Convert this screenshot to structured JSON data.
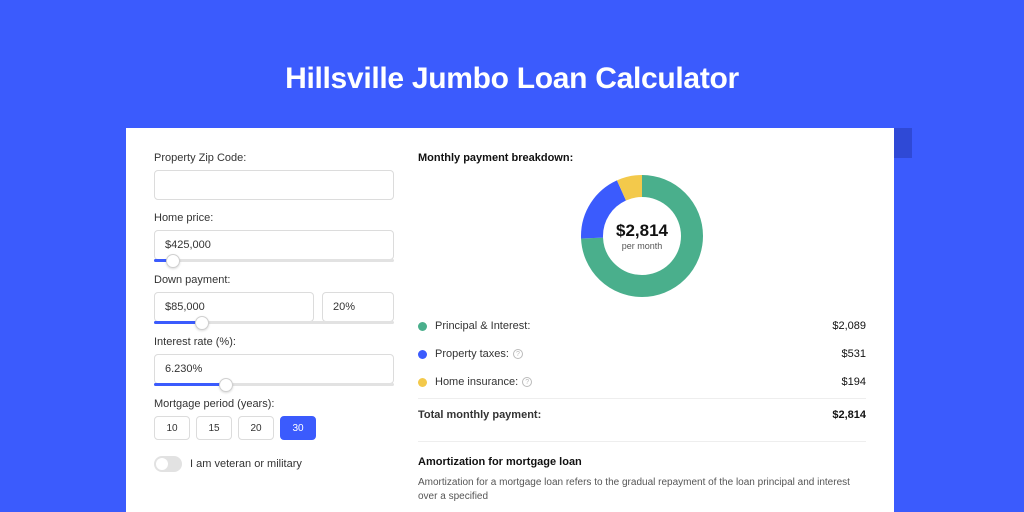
{
  "title": "Hillsville Jumbo Loan Calculator",
  "colors": {
    "page_bg": "#3b5bfd",
    "shadow": "#2f49d6",
    "card_bg": "#ffffff",
    "accent": "#3b5bfd",
    "input_border": "#dcdcdc",
    "text": "#333333"
  },
  "form": {
    "zip": {
      "label": "Property Zip Code:",
      "value": ""
    },
    "price": {
      "label": "Home price:",
      "value": "$425,000",
      "slider_percent": 8
    },
    "down": {
      "label": "Down payment:",
      "amount": "$85,000",
      "percent": "20%",
      "slider_percent": 20
    },
    "rate": {
      "label": "Interest rate (%):",
      "value": "6.230%",
      "slider_percent": 30
    },
    "period": {
      "label": "Mortgage period (years):",
      "options": [
        "10",
        "15",
        "20",
        "30"
      ],
      "active": "30"
    },
    "veteran": {
      "label": "I am veteran or military",
      "on": false
    }
  },
  "breakdown": {
    "title": "Monthly payment breakdown:",
    "total_amount": "$2,814",
    "total_sub": "per month",
    "donut": {
      "type": "donut",
      "radius": 50,
      "stroke_width": 22,
      "circumference": 314.16,
      "segments": [
        {
          "name": "principal_interest",
          "color": "#4aaf8c",
          "fraction": 0.742
        },
        {
          "name": "property_taxes",
          "color": "#3b5bfd",
          "fraction": 0.189
        },
        {
          "name": "home_insurance",
          "color": "#f3c94b",
          "fraction": 0.069
        }
      ]
    },
    "rows": [
      {
        "color": "#4aaf8c",
        "label": "Principal & Interest:",
        "info": false,
        "value": "$2,089"
      },
      {
        "color": "#3b5bfd",
        "label": "Property taxes:",
        "info": true,
        "value": "$531"
      },
      {
        "color": "#f3c94b",
        "label": "Home insurance:",
        "info": true,
        "value": "$194"
      }
    ],
    "total_row": {
      "label": "Total monthly payment:",
      "value": "$2,814"
    }
  },
  "amortization": {
    "title": "Amortization for mortgage loan",
    "text": "Amortization for a mortgage loan refers to the gradual repayment of the loan principal and interest over a specified"
  }
}
